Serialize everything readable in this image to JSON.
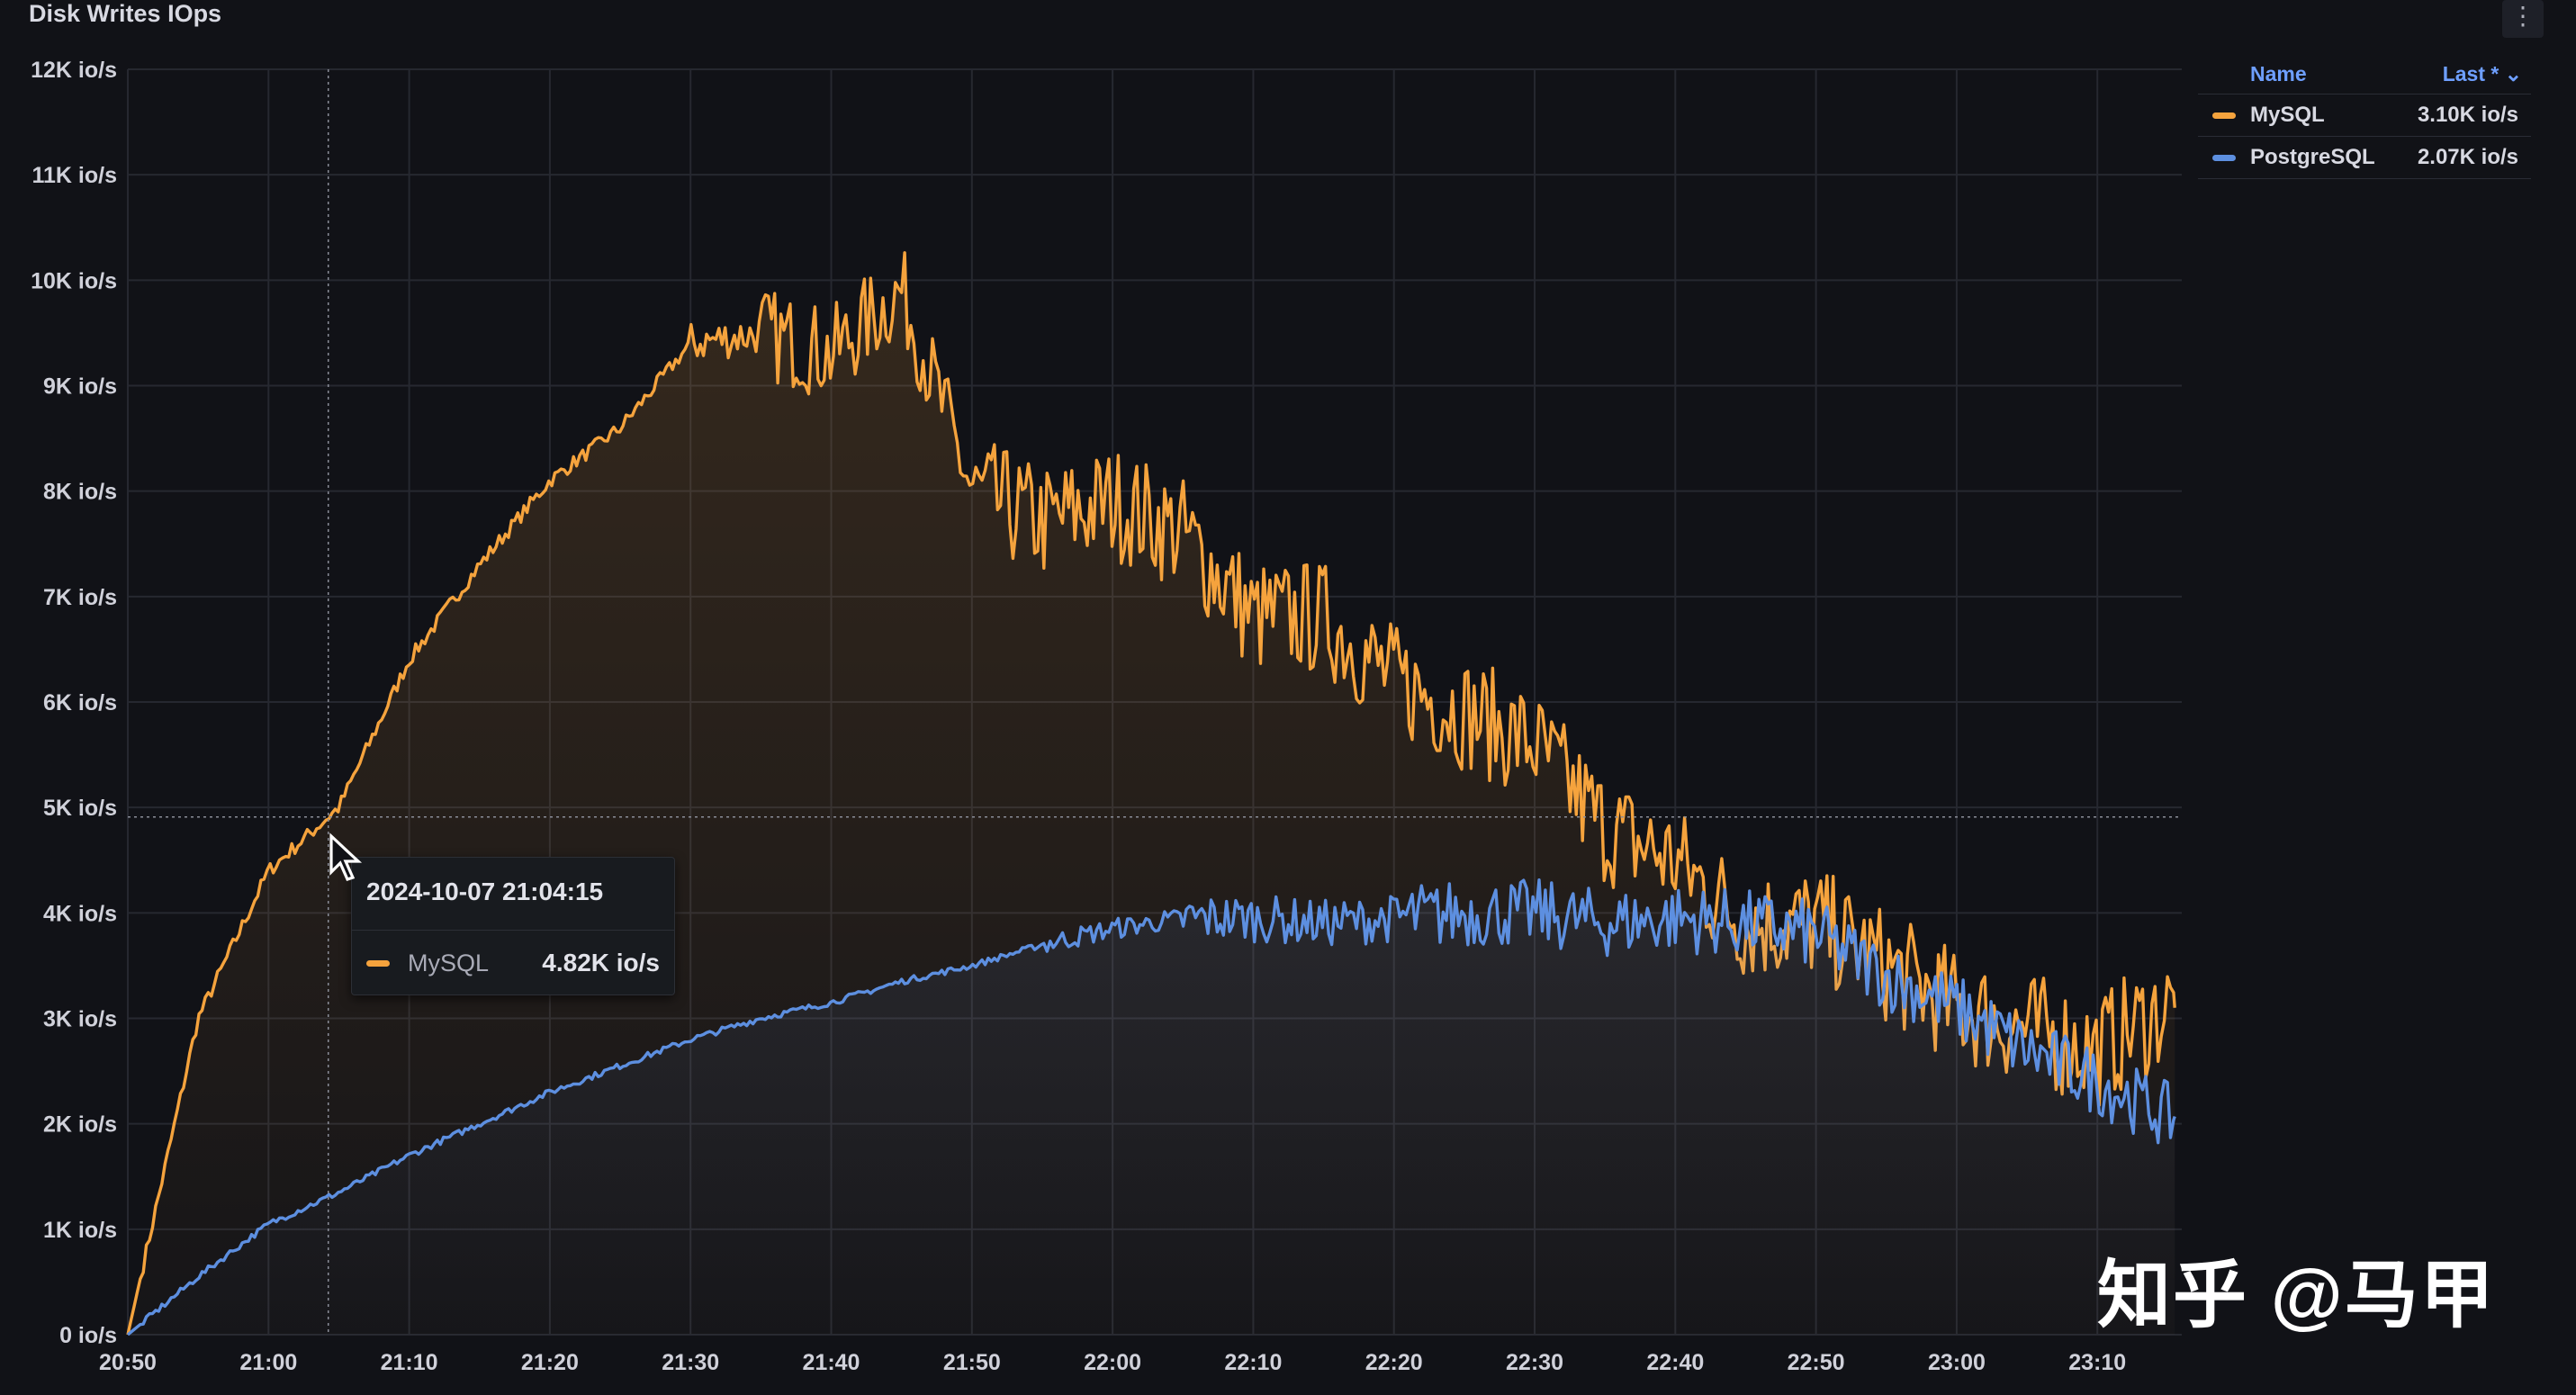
{
  "panel": {
    "title": "Disk Writes IOps",
    "menu_icon": "kebab-menu-icon"
  },
  "legend": {
    "header_name": "Name",
    "header_last": "Last * ⌄",
    "items": [
      {
        "name": "MySQL",
        "last": "3.10K io/s",
        "color": "#f5a33d"
      },
      {
        "name": "PostgreSQL",
        "last": "2.07K io/s",
        "color": "#5d8fe0"
      }
    ]
  },
  "tooltip": {
    "time": "2024-10-07 21:04:15",
    "series": "MySQL",
    "value": "4.82K io/s",
    "color": "#f5a33d"
  },
  "watermark": "知乎 @马甲",
  "colors": {
    "background": "#111217",
    "grid": "#262830",
    "mysql": "#f5a33d",
    "postgres": "#5d8fe0"
  },
  "chart_data": {
    "type": "line",
    "title": "Disk Writes IOps",
    "ylim": [
      0,
      12000
    ],
    "xlim": [
      "20:50",
      "23:16"
    ],
    "y_ticks": [
      "0 io/s",
      "1K io/s",
      "2K io/s",
      "3K io/s",
      "4K io/s",
      "5K io/s",
      "6K io/s",
      "7K io/s",
      "8K io/s",
      "9K io/s",
      "10K io/s",
      "11K io/s",
      "12K io/s"
    ],
    "x_ticks": [
      "20:50",
      "21:00",
      "21:10",
      "21:20",
      "21:30",
      "21:40",
      "21:50",
      "22:00",
      "22:10",
      "22:20",
      "22:30",
      "22:40",
      "22:50",
      "23:00",
      "23:10"
    ],
    "grid": true,
    "legend_position": "top-right",
    "series": [
      {
        "name": "MySQL",
        "x": [
          "20:50",
          "20:55",
          "21:00",
          "21:05",
          "21:10",
          "21:15",
          "21:20",
          "21:25",
          "21:30",
          "21:35",
          "21:40",
          "21:45",
          "21:50",
          "21:55",
          "22:00",
          "22:05",
          "22:10",
          "22:15",
          "22:20",
          "22:25",
          "22:30",
          "22:35",
          "22:40",
          "22:45",
          "22:50",
          "22:55",
          "23:00",
          "23:05",
          "23:10",
          "23:15"
        ],
        "values": [
          0,
          3000,
          4400,
          5000,
          6400,
          7300,
          8100,
          8600,
          9400,
          9500,
          9300,
          9900,
          8000,
          7700,
          7900,
          7600,
          6800,
          6800,
          6200,
          5900,
          5600,
          4800,
          4500,
          3900,
          3900,
          3500,
          3100,
          2900,
          2700,
          3100
        ]
      },
      {
        "name": "PostgreSQL",
        "x": [
          "20:50",
          "20:55",
          "21:00",
          "21:05",
          "21:10",
          "21:15",
          "21:20",
          "21:25",
          "21:30",
          "21:35",
          "21:40",
          "21:45",
          "21:50",
          "21:55",
          "22:00",
          "22:05",
          "22:10",
          "22:15",
          "22:20",
          "22:25",
          "22:30",
          "22:35",
          "22:40",
          "22:45",
          "22:50",
          "22:55",
          "23:00",
          "23:05",
          "23:10",
          "23:15"
        ],
        "values": [
          0,
          550,
          1050,
          1350,
          1700,
          2000,
          2300,
          2550,
          2800,
          3000,
          3150,
          3350,
          3500,
          3700,
          3850,
          3950,
          3950,
          3900,
          3950,
          4000,
          4000,
          3900,
          3950,
          3900,
          3800,
          3400,
          3100,
          2700,
          2400,
          2070
        ]
      }
    ]
  }
}
